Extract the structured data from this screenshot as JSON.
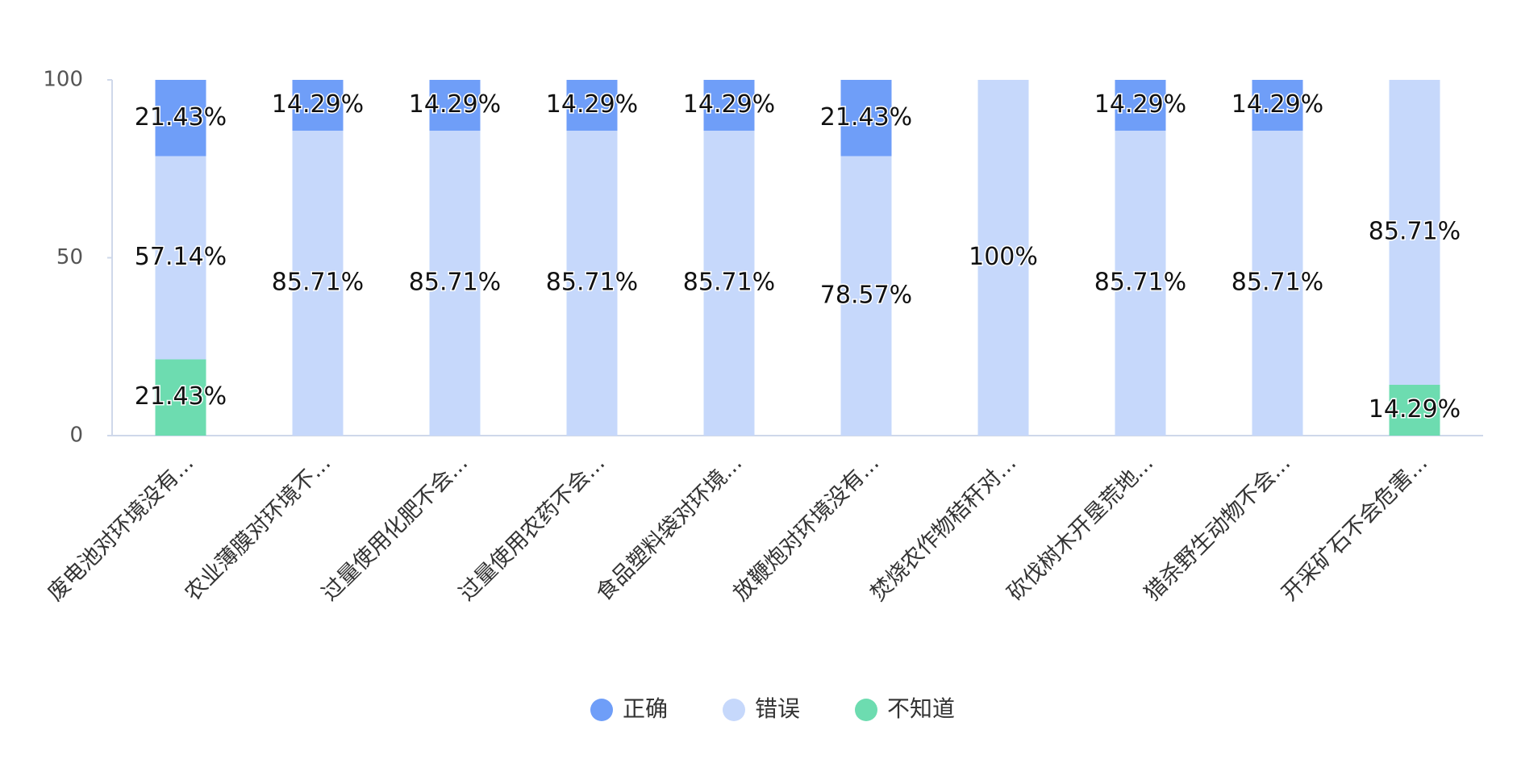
{
  "chart_data": {
    "type": "bar",
    "stacked": true,
    "categories": [
      "废电池对环境没有...",
      "农业薄膜对环境不...",
      "过量使用化肥不会...",
      "过量使用农药不会...",
      "食品塑料袋对环境...",
      "放鞭炮对环境没有...",
      "焚烧农作物秸秆对...",
      "砍伐树木开垦荒地...",
      "猎杀野生动物不会...",
      "开采矿石不会危害..."
    ],
    "series": [
      {
        "name": "正确",
        "color": "#6f9ef8",
        "values": [
          21.43,
          14.29,
          14.29,
          14.29,
          14.29,
          21.43,
          0,
          14.29,
          14.29,
          0
        ],
        "value_labels": [
          "21.43%",
          "14.29%",
          "14.29%",
          "14.29%",
          "14.29%",
          "21.43%",
          null,
          "14.29%",
          "14.29%",
          null
        ]
      },
      {
        "name": "错误",
        "color": "#c6d8fb",
        "values": [
          57.14,
          85.71,
          85.71,
          85.71,
          85.71,
          78.57,
          100,
          85.71,
          85.71,
          85.71
        ],
        "value_labels": [
          "57.14%",
          "85.71%",
          "85.71%",
          "85.71%",
          "85.71%",
          "78.57%",
          "100%",
          "85.71%",
          "85.71%",
          "85.71%"
        ]
      },
      {
        "name": "不知道",
        "color": "#6ddcb0",
        "values": [
          21.43,
          0,
          0,
          0,
          0,
          0,
          0,
          0,
          0,
          14.29
        ],
        "value_labels": [
          "21.43%",
          null,
          null,
          null,
          null,
          null,
          null,
          null,
          null,
          "14.29%"
        ]
      }
    ],
    "ylim": [
      0,
      100
    ],
    "yticks": [
      0,
      50,
      100
    ],
    "grid": false,
    "legend": "bottom"
  }
}
